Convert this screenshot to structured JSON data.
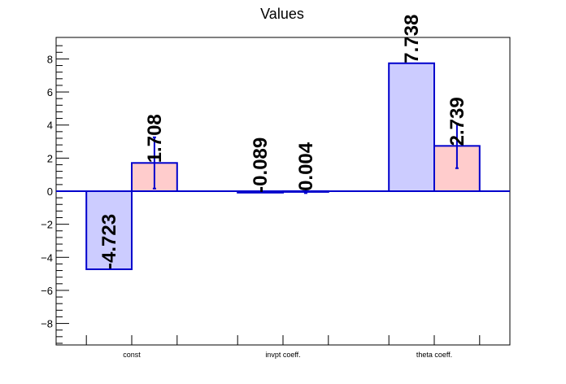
{
  "chart_data": {
    "type": "bar",
    "title": "Values",
    "xlabel": "",
    "ylabel": "",
    "categories": [
      "const",
      "invpt coeff.",
      "theta coeff."
    ],
    "ylim": [
      -9.3,
      9.3
    ],
    "yticks": [
      -8,
      -6,
      -4,
      -2,
      0,
      2,
      4,
      6,
      8
    ],
    "ytick_labels": [
      "−8",
      "−6",
      "−4",
      "−2",
      "0",
      "2",
      "4",
      "6",
      "8"
    ],
    "grid": false,
    "legend": "none",
    "series": [
      {
        "values": [
          -4.723,
          -0.089,
          7.738
        ],
        "labels": [
          "-4.723",
          "-0.089",
          "7.738"
        ],
        "errors": [
          0,
          0,
          0
        ],
        "fill": "#ccccff",
        "stroke": "#0000cc"
      },
      {
        "values": [
          1.708,
          0.004,
          2.739
        ],
        "labels": [
          "1.708",
          "0.004",
          "2.739"
        ],
        "errors": [
          1.55,
          0.12,
          1.35
        ],
        "fill": "#ffcccc",
        "stroke": "#0000cc"
      }
    ]
  }
}
